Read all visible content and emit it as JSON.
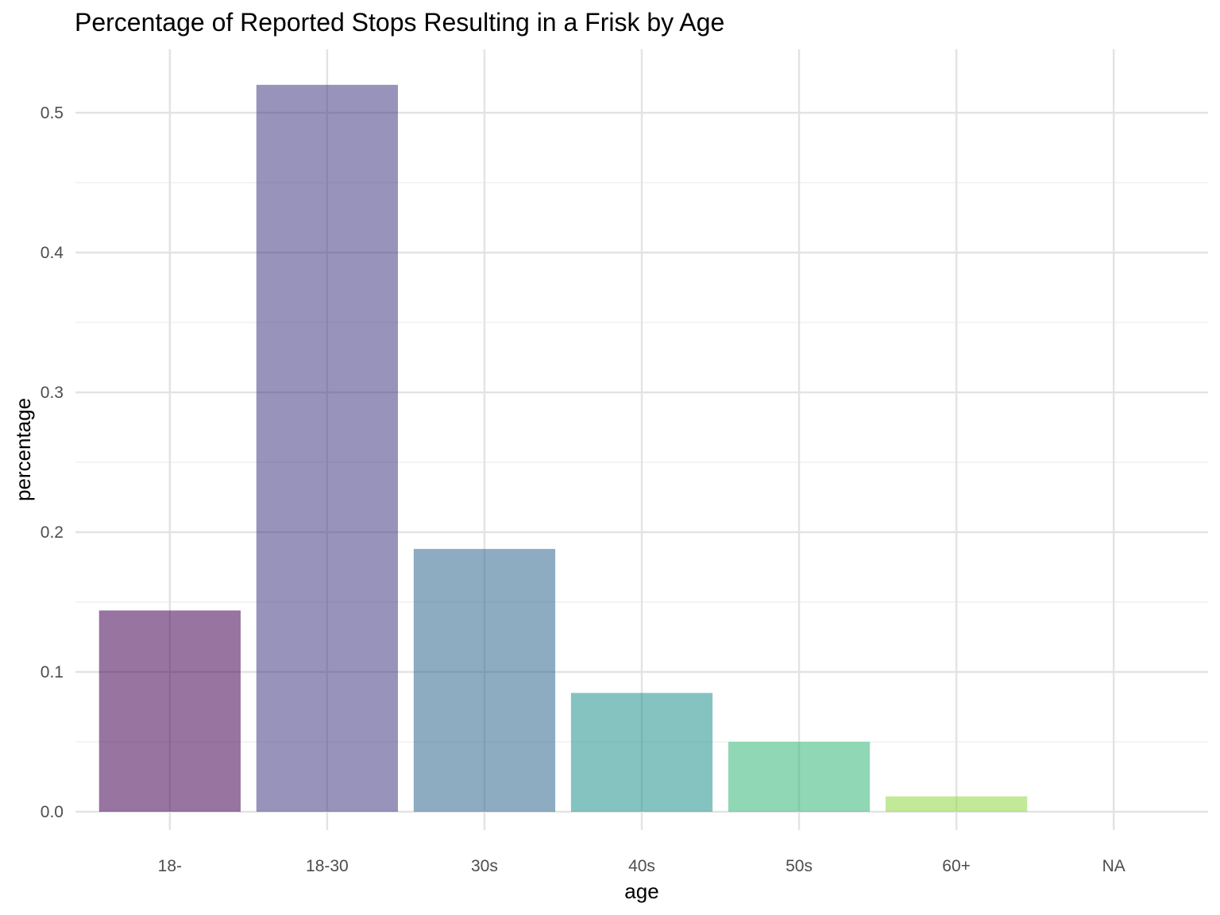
{
  "chart_data": {
    "type": "bar",
    "title": "Percentage of Reported Stops Resulting in a Frisk by Age",
    "xlabel": "age",
    "ylabel": "percentage",
    "categories": [
      "18-",
      "18-30",
      "30s",
      "40s",
      "50s",
      "60+",
      "NA"
    ],
    "values": [
      0.144,
      0.52,
      0.188,
      0.085,
      0.05,
      0.011,
      0.0
    ],
    "colors": [
      "#440154",
      "#443a83",
      "#31688e",
      "#21918c",
      "#35b779",
      "#8fd744",
      "#fde725"
    ],
    "bar_opacity": 0.55,
    "ylim": [
      -0.023,
      0.545
    ],
    "yticks": [
      0.0,
      0.1,
      0.2,
      0.3,
      0.4,
      0.5
    ],
    "ytick_labels": [
      "0.0",
      "0.1",
      "0.2",
      "0.3",
      "0.4",
      "0.5"
    ],
    "grid": true,
    "legend": "none"
  }
}
